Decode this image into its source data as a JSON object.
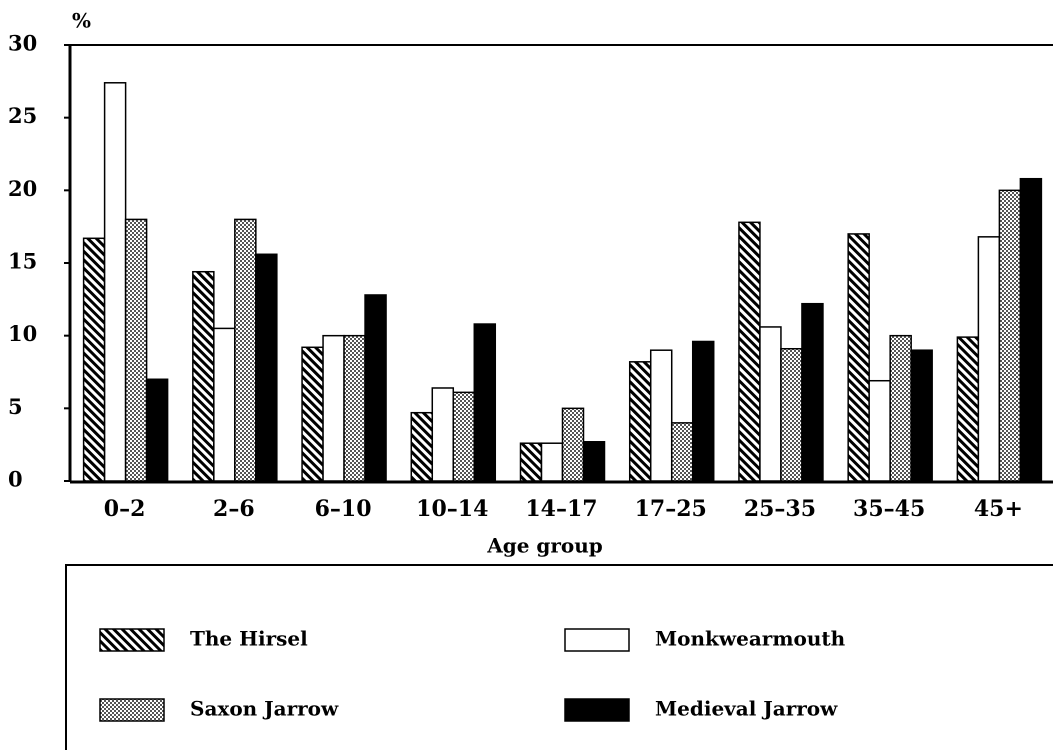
{
  "chart_data": {
    "type": "bar",
    "y_label": "%",
    "x_label": "Age group",
    "categories": [
      "0–2",
      "2–6",
      "6–10",
      "10–14",
      "14–17",
      "17–25",
      "25–35",
      "35–45",
      "45+"
    ],
    "series": [
      {
        "name": "The Hirsel",
        "color": "#000000",
        "pattern": "hatch",
        "values": [
          16.7,
          14.4,
          9.2,
          4.7,
          2.6,
          8.2,
          17.8,
          17,
          9.9
        ]
      },
      {
        "name": "Monkwearmouth",
        "color": "#ffffff",
        "pattern": "none",
        "values": [
          27.4,
          10.5,
          10,
          6.4,
          2.6,
          9,
          10.6,
          6.9,
          16.8
        ]
      },
      {
        "name": "Saxon Jarrow",
        "color": "#888888",
        "pattern": "dots",
        "values": [
          18,
          18,
          10,
          6.1,
          5,
          4,
          9.1,
          10,
          20
        ]
      },
      {
        "name": "Medieval Jarrow",
        "color": "#000000",
        "pattern": "none",
        "values": [
          7,
          15.6,
          12.8,
          10.8,
          2.7,
          9.6,
          12.2,
          9,
          20.8
        ]
      }
    ],
    "ylim": [
      0,
      30
    ],
    "yticks": [
      0,
      5,
      10,
      15,
      20,
      25,
      30
    ]
  }
}
